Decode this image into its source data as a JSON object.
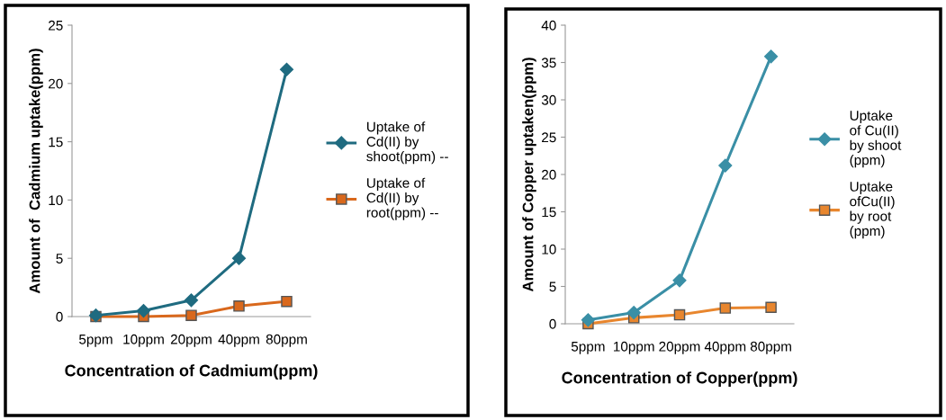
{
  "chart_data": [
    {
      "type": "line",
      "xlabel": "Concentration of Cadmium(ppm)",
      "ylabel": "Amount of  Cadmium uptake(ppm)",
      "categories": [
        "5ppm",
        "10ppm",
        "20ppm",
        "40ppm",
        "80ppm"
      ],
      "series": [
        {
          "name": "Uptake of\nCd(II) by\nshoot(ppm) --",
          "color": "#1f6b80",
          "marker": "diamond",
          "values": [
            0.1,
            0.5,
            1.4,
            5.0,
            21.2
          ]
        },
        {
          "name": "Uptake of\nCd(II) by\nroot(ppm) --",
          "color": "#d9681c",
          "marker": "square",
          "values": [
            0.0,
            0.0,
            0.1,
            0.9,
            1.3
          ]
        }
      ],
      "ylim": [
        0,
        25
      ],
      "yticks": [
        0,
        5,
        10,
        15,
        20,
        25
      ],
      "grid": false,
      "legend": "right"
    },
    {
      "type": "line",
      "xlabel": "Concentration of Copper(ppm)",
      "ylabel": "Amount of Copper uptaken(ppm)",
      "categories": [
        "5ppm",
        "10ppm",
        "20ppm",
        "40ppm",
        "80ppm"
      ],
      "series": [
        {
          "name": "Uptake\nof Cu(II)\nby shoot\n(ppm)",
          "color": "#3a8fa6",
          "marker": "diamond",
          "values": [
            0.5,
            1.5,
            5.8,
            21.2,
            35.8
          ]
        },
        {
          "name": "Uptake\nofCu(II)\nby root\n(ppm)",
          "color": "#e8862e",
          "marker": "square",
          "values": [
            0.0,
            0.8,
            1.2,
            2.1,
            2.2
          ]
        }
      ],
      "ylim": [
        0,
        40
      ],
      "yticks": [
        0,
        5,
        10,
        15,
        20,
        25,
        30,
        35,
        40
      ],
      "grid": false,
      "legend": "right"
    }
  ]
}
